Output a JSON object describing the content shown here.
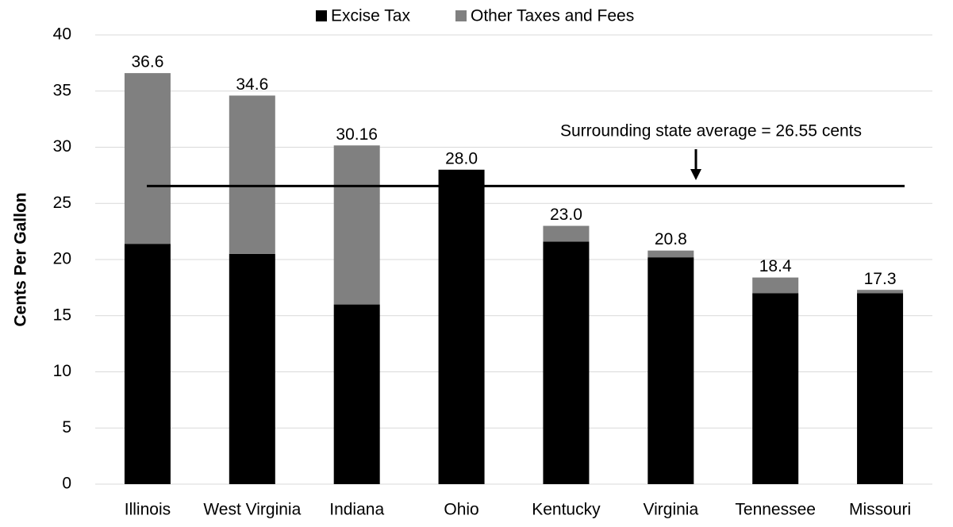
{
  "chart_data": {
    "type": "stacked_bar",
    "y_label": "Cents Per Gallon",
    "categories": [
      "Illinois",
      "West Virginia",
      "Indiana",
      "Ohio",
      "Kentucky",
      "Virginia",
      "Tennessee",
      "Missouri"
    ],
    "series": [
      {
        "name": "Excise Tax",
        "color": "#000000",
        "values": [
          21.4,
          20.5,
          16,
          28,
          21.6,
          20.2,
          17,
          17
        ]
      },
      {
        "name": "Other Taxes and Fees",
        "color": "#808080",
        "values": [
          15.2,
          14.1,
          14.16,
          0,
          1.4,
          0.6,
          1.4,
          0.3
        ]
      }
    ],
    "totals": [
      36.6,
      34.6,
      30.16,
      28,
      23,
      20.8,
      18.4,
      17.3
    ],
    "total_labels": [
      "36.6",
      "34.6",
      "30.16",
      "28.0",
      "23.0",
      "20.8",
      "18.4",
      "17.3"
    ],
    "reference_line": {
      "value": 26.55,
      "label": "Surrounding state average = 26.55 cents"
    },
    "ylim": [
      0,
      40
    ],
    "yticks": [
      0,
      5,
      10,
      15,
      20,
      25,
      30,
      35,
      40
    ],
    "grid": true
  }
}
